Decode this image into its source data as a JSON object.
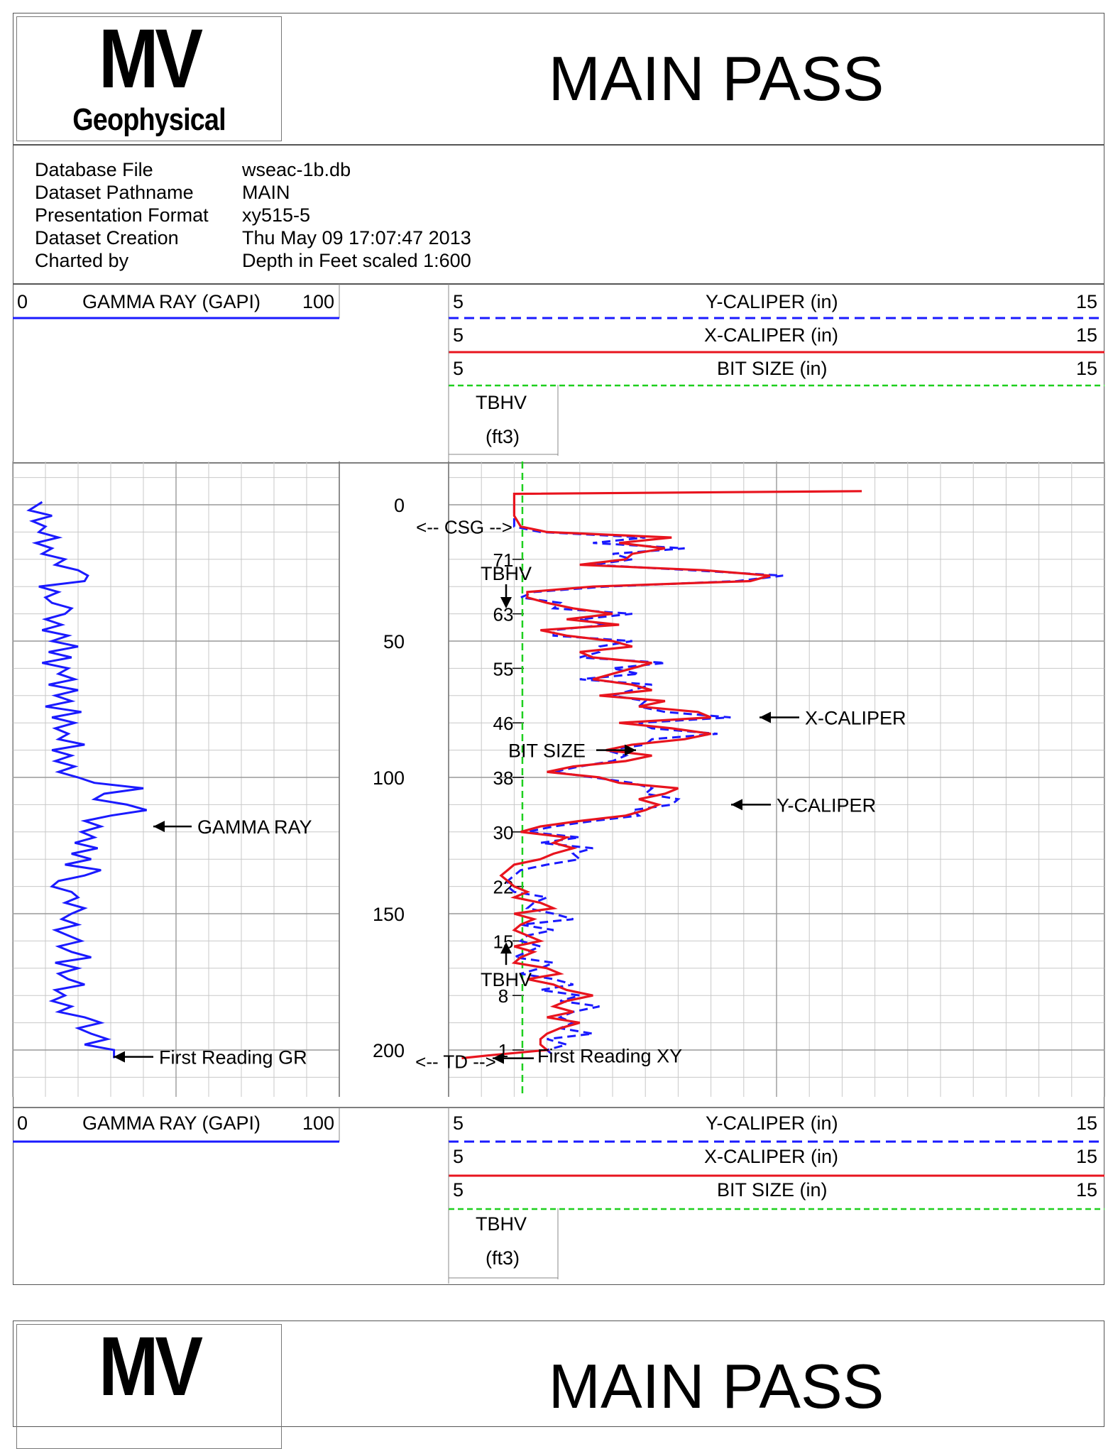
{
  "logo": {
    "mv": "MV",
    "name": "Geophysical"
  },
  "title": "MAIN PASS",
  "info": [
    {
      "label": "Database File",
      "value": "wseac-1b.db"
    },
    {
      "label": "Dataset Pathname",
      "value": "MAIN"
    },
    {
      "label": "Presentation Format",
      "value": "xy515-5"
    },
    {
      "label": "Dataset Creation",
      "value": "Thu May 09 17:07:47 2013"
    },
    {
      "label": "Charted by",
      "value": "Depth in Feet scaled 1:600"
    }
  ],
  "tracks": {
    "gamma": {
      "min": "0",
      "label": "GAMMA RAY (GAPI)",
      "max": "100",
      "color": "#1a1aff"
    },
    "ycal": {
      "min": "5",
      "label": "Y-CALIPER (in)",
      "max": "15",
      "color": "#1a1aff",
      "style": "dashed"
    },
    "xcal": {
      "min": "5",
      "label": "X-CALIPER (in)",
      "max": "15",
      "color": "#e8141e",
      "style": "solid"
    },
    "bit": {
      "min": "5",
      "label": "BIT SIZE (in)",
      "max": "15",
      "color": "#1ecf1e",
      "style": "dashed"
    },
    "tbhv": {
      "line1": "TBHV",
      "line2": "(ft3)"
    }
  },
  "chart_data": {
    "type": "line",
    "depth_unit": "ft",
    "depth_ticks": [
      0,
      50,
      100,
      150,
      200
    ],
    "depth_range": [
      -13,
      220
    ],
    "gamma": {
      "name": "GAMMA RAY",
      "xlim": [
        0,
        100
      ],
      "depth": [
        -1,
        2,
        4,
        6,
        8,
        10,
        12,
        14,
        16,
        18,
        20,
        22,
        24,
        26,
        28,
        30,
        32,
        34,
        36,
        38,
        40,
        42,
        44,
        46,
        48,
        50,
        52,
        54,
        56,
        58,
        60,
        62,
        64,
        66,
        68,
        70,
        72,
        74,
        76,
        78,
        80,
        82,
        84,
        86,
        88,
        90,
        92,
        94,
        96,
        98,
        100,
        102,
        104,
        106,
        108,
        110,
        112,
        114,
        116,
        118,
        120,
        122,
        124,
        126,
        128,
        130,
        132,
        134,
        136,
        138,
        140,
        142,
        144,
        146,
        148,
        150,
        152,
        154,
        156,
        158,
        160,
        162,
        164,
        166,
        168,
        170,
        172,
        174,
        176,
        178,
        180,
        182,
        184,
        186,
        188,
        190,
        192,
        194,
        196,
        198,
        200,
        202,
        203
      ],
      "values": [
        9,
        5,
        12,
        6,
        10,
        8,
        14,
        7,
        12,
        9,
        16,
        13,
        20,
        23,
        22,
        8,
        14,
        10,
        12,
        18,
        16,
        10,
        15,
        9,
        17,
        12,
        20,
        11,
        18,
        9,
        17,
        14,
        19,
        11,
        20,
        13,
        18,
        10,
        21,
        12,
        19,
        13,
        17,
        14,
        22,
        12,
        18,
        13,
        19,
        14,
        20,
        25,
        40,
        28,
        25,
        35,
        41,
        30,
        22,
        27,
        21,
        25,
        19,
        26,
        18,
        24,
        16,
        27,
        22,
        14,
        12,
        18,
        20,
        16,
        22,
        18,
        15,
        20,
        13,
        17,
        21,
        14,
        18,
        24,
        13,
        20,
        14,
        17,
        22,
        13,
        16,
        12,
        18,
        14,
        22,
        27,
        20,
        24,
        29,
        22,
        31,
        31,
        31
      ]
    },
    "xcal": {
      "name": "X-CALIPER",
      "xlim": [
        5,
        15
      ],
      "depth": [
        -5,
        -4,
        -3,
        0,
        4,
        8,
        10,
        12,
        14,
        16,
        18,
        20,
        22,
        24,
        26,
        28,
        30,
        32,
        34,
        36,
        38,
        40,
        42,
        44,
        46,
        48,
        50,
        52,
        54,
        56,
        58,
        60,
        62,
        64,
        66,
        68,
        70,
        72,
        74,
        76,
        78,
        80,
        82,
        84,
        86,
        88,
        90,
        92,
        94,
        96,
        98,
        100,
        102,
        104,
        106,
        108,
        110,
        112,
        114,
        116,
        118,
        120,
        122,
        124,
        126,
        128,
        130,
        132,
        134,
        136,
        138,
        140,
        142,
        144,
        146,
        148,
        150,
        152,
        154,
        156,
        158,
        160,
        162,
        164,
        166,
        168,
        170,
        172,
        174,
        176,
        178,
        180,
        182,
        184,
        186,
        188,
        190,
        192,
        194,
        196,
        198,
        200,
        202,
        203
      ],
      "values": [
        11.3,
        6.0,
        6.0,
        6.0,
        6.0,
        6.1,
        6.5,
        8.4,
        7.6,
        8.3,
        7.8,
        7.7,
        7.0,
        8.9,
        9.9,
        9.6,
        7.2,
        6.2,
        6.2,
        6.5,
        6.9,
        7.5,
        6.8,
        7.6,
        6.4,
        6.8,
        7.5,
        7.8,
        7.0,
        7.2,
        8.1,
        7.8,
        7.5,
        7.2,
        7.8,
        8.1,
        7.3,
        8.3,
        7.9,
        8.8,
        9.0,
        7.6,
        8.4,
        9.0,
        8.6,
        7.8,
        7.4,
        8.1,
        7.7,
        6.9,
        6.5,
        7.3,
        7.6,
        8.5,
        8.3,
        7.9,
        8.2,
        8.0,
        7.7,
        7.0,
        6.4,
        6.1,
        6.8,
        6.6,
        6.9,
        6.6,
        6.4,
        6.0,
        5.9,
        5.8,
        5.9,
        6.0,
        6.2,
        6.0,
        6.4,
        6.6,
        6.0,
        6.3,
        6.1,
        6.0,
        6.2,
        6.4,
        6.0,
        6.3,
        6.1,
        6.0,
        6.5,
        6.7,
        6.2,
        6.6,
        6.8,
        7.2,
        6.8,
        6.6,
        6.9,
        6.5,
        7.0,
        6.7,
        6.5,
        6.4,
        6.4,
        6.5,
        5.6,
        5.2
      ]
    },
    "ycal": {
      "name": "Y-CALIPER",
      "xlim": [
        5,
        15
      ],
      "depth": [
        0,
        4,
        8,
        10,
        12,
        14,
        16,
        18,
        20,
        22,
        24,
        26,
        28,
        30,
        32,
        34,
        36,
        38,
        40,
        42,
        44,
        46,
        48,
        50,
        52,
        54,
        56,
        58,
        60,
        62,
        64,
        66,
        68,
        70,
        72,
        74,
        76,
        78,
        80,
        82,
        84,
        86,
        88,
        90,
        92,
        94,
        96,
        98,
        100,
        102,
        104,
        106,
        108,
        110,
        112,
        114,
        116,
        118,
        120,
        122,
        124,
        126,
        128,
        130,
        132,
        134,
        136,
        138,
        140,
        142,
        144,
        146,
        148,
        150,
        152,
        154,
        156,
        158,
        160,
        162,
        164,
        166,
        168,
        170,
        172,
        174,
        176,
        178,
        180,
        182,
        184,
        186,
        188,
        190,
        192,
        194,
        196,
        198,
        200,
        202
      ],
      "values": [
        6.0,
        6.0,
        6.0,
        6.4,
        8.0,
        7.2,
        8.6,
        7.5,
        7.8,
        7.2,
        8.7,
        10.1,
        9.4,
        7.4,
        6.3,
        6.1,
        6.7,
        6.6,
        7.8,
        7.0,
        7.4,
        6.6,
        6.6,
        7.8,
        7.3,
        7.3,
        7.0,
        8.3,
        7.5,
        7.9,
        7.0,
        8.1,
        7.8,
        7.5,
        8.0,
        7.9,
        8.3,
        9.3,
        7.9,
        8.1,
        9.1,
        8.1,
        8.0,
        7.4,
        7.7,
        7.5,
        7.0,
        6.6,
        7.2,
        7.8,
        8.1,
        8.0,
        8.5,
        8.4,
        7.8,
        7.9,
        7.2,
        6.6,
        6.2,
        7.0,
        6.4,
        7.2,
        6.9,
        7.0,
        6.5,
        6.1,
        6.0,
        5.9,
        5.9,
        6.0,
        6.5,
        6.3,
        6.2,
        6.6,
        6.9,
        6.1,
        6.6,
        6.2,
        6.1,
        6.4,
        6.2,
        6.0,
        6.6,
        6.4,
        6.1,
        6.6,
        6.9,
        6.4,
        7.0,
        6.7,
        7.3,
        6.9,
        6.7,
        6.9,
        6.7,
        7.2,
        6.5,
        6.8,
        6.5,
        6.6
      ]
    },
    "bit_size": {
      "name": "BIT SIZE",
      "value": 6.125,
      "xlim": [
        5,
        15
      ]
    },
    "tbhv": {
      "name": "TBHV",
      "ticks": [
        {
          "depth": 20,
          "label": "71"
        },
        {
          "depth": 40,
          "label": "63"
        },
        {
          "depth": 60,
          "label": "55"
        },
        {
          "depth": 80,
          "label": "46"
        },
        {
          "depth": 100,
          "label": "38"
        },
        {
          "depth": 120,
          "label": "30"
        },
        {
          "depth": 140,
          "label": "22"
        },
        {
          "depth": 160,
          "label": "15"
        },
        {
          "depth": 180,
          "label": "8"
        },
        {
          "depth": 200,
          "label": "1"
        }
      ]
    },
    "annotations": [
      {
        "text": "<-- CSG -->",
        "depth": 8
      },
      {
        "text": "<-- TD -->",
        "depth": 204
      },
      {
        "text": "GAMMA RAY",
        "depth": 118
      },
      {
        "text": "First Reading GR",
        "depth": 202.5
      },
      {
        "text": "X-CALIPER",
        "depth": 78
      },
      {
        "text": "Y-CALIPER",
        "depth": 110
      },
      {
        "text": "BIT SIZE",
        "depth": 90
      },
      {
        "text": "TBHV",
        "depth": 25
      },
      {
        "text": "TBHV",
        "depth": 174
      },
      {
        "text": "First Reading XY",
        "depth": 202
      }
    ]
  }
}
